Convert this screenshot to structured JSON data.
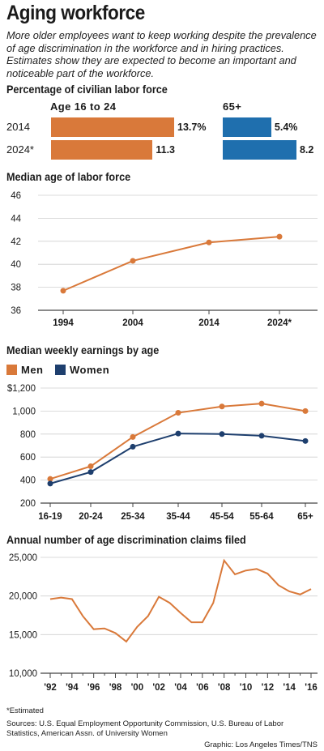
{
  "header": {
    "title": "Aging workforce",
    "subtitle": "More older employees want to keep working despite the prevalence of age discrimination in the workforce and in hiring practices. Estimates show they are expected to become an important and noticeable part of the workforce."
  },
  "colors": {
    "orange": "#d9793a",
    "blue": "#1f6fae",
    "navy": "#1e3f6e"
  },
  "footer": {
    "footnote": "*Estimated",
    "sources": "Sources: U.S. Equal Employment Opportunity Commission, U.S. Bureau of Labor Statistics, American Assn. of University Women",
    "credit": "Graphic: Los Angeles Times/TNS"
  },
  "chart_data": [
    {
      "type": "bar",
      "title": "Percentage of civilian labor force",
      "categories": [
        "2014",
        "2024*"
      ],
      "series": [
        {
          "name": "Age 16 to 24",
          "values": [
            13.7,
            11.3
          ],
          "labels": [
            "13.7%",
            "11.3"
          ]
        },
        {
          "name": "65+",
          "values": [
            5.4,
            8.2
          ],
          "labels": [
            "5.4%",
            "8.2"
          ]
        }
      ]
    },
    {
      "type": "line",
      "title": "Median age of labor force",
      "x": [
        "1994",
        "2004",
        "2014",
        "2024*"
      ],
      "values": [
        37.7,
        40.3,
        41.9,
        42.4
      ],
      "ylim": [
        36,
        46
      ],
      "yticks": [
        "36",
        "38",
        "40",
        "42",
        "44",
        "46"
      ],
      "grid": true
    },
    {
      "type": "line",
      "title": "Median weekly earnings by age",
      "categories": [
        "16-19",
        "20-24",
        "25-34",
        "35-44",
        "45-54",
        "55-64",
        "65+"
      ],
      "series": [
        {
          "name": "Men",
          "values": [
            410,
            520,
            775,
            985,
            1040,
            1065,
            1000
          ]
        },
        {
          "name": "Women",
          "values": [
            370,
            470,
            690,
            805,
            800,
            785,
            740
          ]
        }
      ],
      "ylim": [
        200,
        1200
      ],
      "yticks": [
        "200",
        "400",
        "600",
        "800",
        "1,000",
        "$1,200"
      ],
      "legend": "top-left",
      "grid": true
    },
    {
      "type": "line",
      "title": "Annual number of age discrimination claims filed",
      "x": [
        1992,
        1993,
        1994,
        1995,
        1996,
        1997,
        1998,
        1999,
        2000,
        2001,
        2002,
        2003,
        2004,
        2005,
        2006,
        2007,
        2008,
        2009,
        2010,
        2011,
        2012,
        2013,
        2014,
        2015,
        2016
      ],
      "xticks": [
        "'92",
        "'94",
        "'96",
        "'98",
        "'00",
        "'02",
        "'04",
        "'06",
        "'08",
        "'10",
        "'12",
        "'14",
        "'16"
      ],
      "values": [
        19600,
        19800,
        19600,
        17400,
        15700,
        15800,
        15200,
        14100,
        16000,
        17400,
        19900,
        19100,
        17800,
        16600,
        16600,
        19100,
        24600,
        22800,
        23300,
        23500,
        22900,
        21400,
        20600,
        20200,
        20900
      ],
      "ylim": [
        10000,
        25000
      ],
      "yticks": [
        "10,000",
        "15,000",
        "20,000",
        "25,000"
      ],
      "grid": true
    }
  ]
}
